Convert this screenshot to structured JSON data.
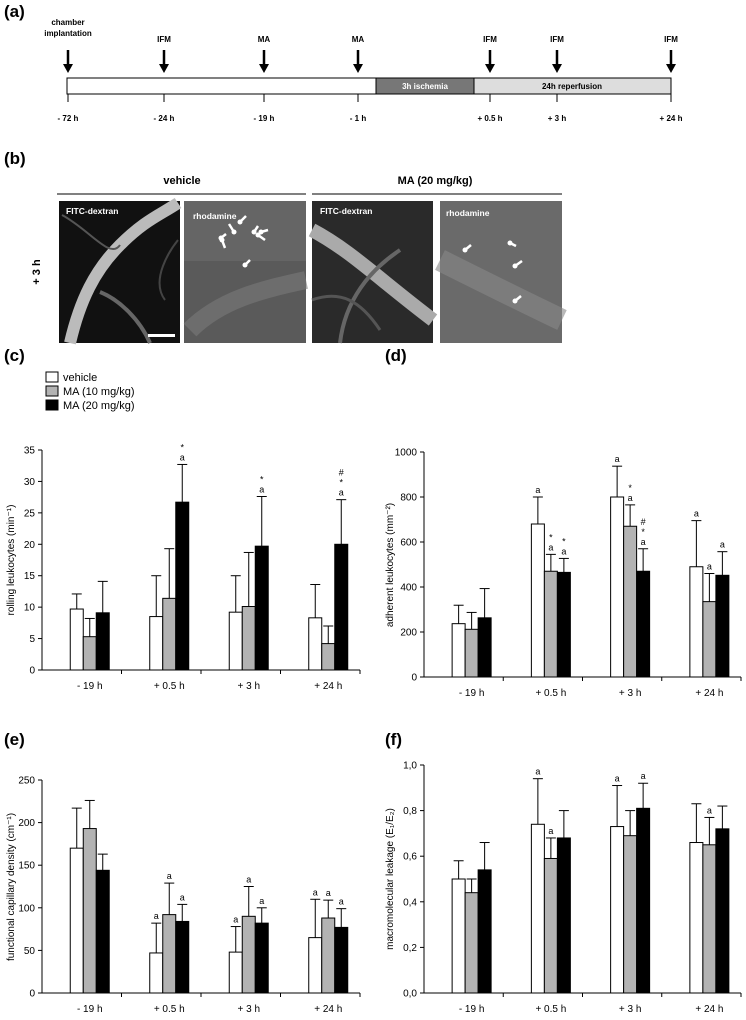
{
  "panels": {
    "a": "(a)",
    "b": "(b)",
    "c": "(c)",
    "d": "(d)",
    "e": "(e)",
    "f": "(f)"
  },
  "timeline": {
    "events": [
      {
        "label": "chamber\nimplantation",
        "time": "- 72 h"
      },
      {
        "label": "IFM",
        "time": "- 24 h"
      },
      {
        "label": "MA",
        "time": "- 19 h"
      },
      {
        "label": "MA",
        "time": "- 1 h"
      },
      {
        "label": "IFM",
        "time": "+ 0.5 h"
      },
      {
        "label": "IFM",
        "time": "+ 3 h"
      },
      {
        "label": "IFM",
        "time": "+ 24 h"
      }
    ],
    "ischemia_label": "3h ischemia",
    "reperfusion_label": "24h reperfusion"
  },
  "micrographs": {
    "group_vehicle": "vehicle",
    "group_ma": "MA (20 mg/kg)",
    "row_label": "+ 3 h",
    "image_labels": [
      "FITC-dextran",
      "rhodamine",
      "FITC-dextran",
      "rhodamine"
    ]
  },
  "legend": [
    "vehicle",
    "MA (10 mg/kg)",
    "MA (20 mg/kg)"
  ],
  "colors": {
    "vehicle": "#ffffff",
    "ma10": "#b3b3b3",
    "ma20": "#000000",
    "ischemia": "#777777",
    "reperfusion": "#dddddd"
  },
  "chart_data": [
    {
      "id": "c",
      "type": "bar",
      "ylabel": "rolling leukocytes (min⁻¹)",
      "categories": [
        "- 19 h",
        "+ 0.5 h",
        "+ 3 h",
        "+ 24 h"
      ],
      "ylim": [
        0,
        35
      ],
      "yticks": [
        0,
        5,
        10,
        15,
        20,
        25,
        30,
        35
      ],
      "series": [
        {
          "name": "vehicle",
          "values": [
            9.7,
            8.5,
            9.2,
            8.3
          ],
          "err": [
            2.4,
            6.5,
            5.8,
            5.3
          ]
        },
        {
          "name": "MA (10 mg/kg)",
          "values": [
            5.3,
            11.4,
            10.1,
            4.2
          ],
          "err": [
            2.9,
            7.9,
            8.6,
            2.8
          ]
        },
        {
          "name": "MA (20 mg/kg)",
          "values": [
            9.1,
            26.7,
            19.7,
            20.0
          ],
          "err": [
            5.0,
            6.0,
            7.9,
            7.1
          ]
        }
      ],
      "annotations": [
        {
          "cat": 1,
          "series": 2,
          "text": [
            "*",
            "a"
          ]
        },
        {
          "cat": 2,
          "series": 2,
          "text": [
            "*",
            "a"
          ]
        },
        {
          "cat": 3,
          "series": 2,
          "text": [
            "#",
            "*",
            "a"
          ]
        }
      ]
    },
    {
      "id": "d",
      "type": "bar",
      "ylabel": "adherent leukocytes (mm⁻²)",
      "categories": [
        "- 19 h",
        "+ 0.5 h",
        "+ 3 h",
        "+ 24 h"
      ],
      "ylim": [
        0,
        1000
      ],
      "yticks": [
        0,
        200,
        400,
        600,
        800,
        1000
      ],
      "series": [
        {
          "name": "vehicle",
          "values": [
            237,
            680,
            800,
            490
          ],
          "err": [
            82,
            120,
            137,
            205
          ]
        },
        {
          "name": "MA (10 mg/kg)",
          "values": [
            212,
            470,
            670,
            335
          ],
          "err": [
            75,
            75,
            95,
            125
          ]
        },
        {
          "name": "MA (20 mg/kg)",
          "values": [
            263,
            465,
            470,
            452
          ],
          "err": [
            130,
            62,
            100,
            105
          ]
        }
      ],
      "annotations": [
        {
          "cat": 1,
          "series": 0,
          "text": [
            "a"
          ]
        },
        {
          "cat": 1,
          "series": 1,
          "text": [
            "*",
            "a"
          ]
        },
        {
          "cat": 1,
          "series": 2,
          "text": [
            "*",
            "a"
          ]
        },
        {
          "cat": 2,
          "series": 0,
          "text": [
            "a"
          ]
        },
        {
          "cat": 2,
          "series": 1,
          "text": [
            "*",
            "a"
          ]
        },
        {
          "cat": 2,
          "series": 2,
          "text": [
            "#",
            "*",
            "a"
          ]
        },
        {
          "cat": 3,
          "series": 0,
          "text": [
            "a"
          ]
        },
        {
          "cat": 3,
          "series": 1,
          "text": [
            "a"
          ]
        },
        {
          "cat": 3,
          "series": 2,
          "text": [
            "a"
          ]
        }
      ]
    },
    {
      "id": "e",
      "type": "bar",
      "ylabel": "functional capillary density (cm⁻¹)",
      "categories": [
        "- 19 h",
        "+ 0.5 h",
        "+ 3 h",
        "+ 24 h"
      ],
      "ylim": [
        0,
        250
      ],
      "yticks": [
        0,
        50,
        100,
        150,
        200,
        250
      ],
      "series": [
        {
          "name": "vehicle",
          "values": [
            170,
            47,
            48,
            65
          ],
          "err": [
            47,
            35,
            30,
            45
          ]
        },
        {
          "name": "MA (10 mg/kg)",
          "values": [
            193,
            92,
            90,
            88
          ],
          "err": [
            33,
            37,
            35,
            21
          ]
        },
        {
          "name": "MA (20 mg/kg)",
          "values": [
            144,
            84,
            82,
            77
          ],
          "err": [
            19,
            20,
            18,
            22
          ]
        }
      ],
      "annotations": [
        {
          "cat": 1,
          "series": 0,
          "text": [
            "a"
          ]
        },
        {
          "cat": 1,
          "series": 1,
          "text": [
            "a"
          ]
        },
        {
          "cat": 1,
          "series": 2,
          "text": [
            "a"
          ]
        },
        {
          "cat": 2,
          "series": 0,
          "text": [
            "a"
          ]
        },
        {
          "cat": 2,
          "series": 1,
          "text": [
            "a"
          ]
        },
        {
          "cat": 2,
          "series": 2,
          "text": [
            "a"
          ]
        },
        {
          "cat": 3,
          "series": 0,
          "text": [
            "a"
          ]
        },
        {
          "cat": 3,
          "series": 1,
          "text": [
            "a"
          ]
        },
        {
          "cat": 3,
          "series": 2,
          "text": [
            "a"
          ]
        }
      ]
    },
    {
      "id": "f",
      "type": "bar",
      "ylabel": "macromolecular leakage (E₁/E₂)",
      "categories": [
        "- 19 h",
        "+ 0.5 h",
        "+ 3 h",
        "+ 24 h"
      ],
      "ylim": [
        0,
        1.0
      ],
      "yticks": [
        0,
        0.2,
        0.4,
        0.6,
        0.8,
        1.0
      ],
      "ytick_labels": [
        "0,0",
        "0,2",
        "0,4",
        "0,6",
        "0,8",
        "1,0"
      ],
      "series": [
        {
          "name": "vehicle",
          "values": [
            0.5,
            0.74,
            0.73,
            0.66
          ],
          "err": [
            0.08,
            0.2,
            0.18,
            0.17
          ]
        },
        {
          "name": "MA (10 mg/kg)",
          "values": [
            0.44,
            0.59,
            0.69,
            0.65
          ],
          "err": [
            0.06,
            0.09,
            0.11,
            0.12
          ]
        },
        {
          "name": "MA (20 mg/kg)",
          "values": [
            0.54,
            0.68,
            0.81,
            0.72
          ],
          "err": [
            0.12,
            0.12,
            0.11,
            0.1
          ]
        }
      ],
      "annotations": [
        {
          "cat": 1,
          "series": 0,
          "text": [
            "a"
          ]
        },
        {
          "cat": 1,
          "series": 1,
          "text": [
            "a"
          ]
        },
        {
          "cat": 2,
          "series": 0,
          "text": [
            "a"
          ]
        },
        {
          "cat": 2,
          "series": 2,
          "text": [
            "a"
          ]
        },
        {
          "cat": 3,
          "series": 1,
          "text": [
            "a"
          ]
        }
      ]
    }
  ]
}
